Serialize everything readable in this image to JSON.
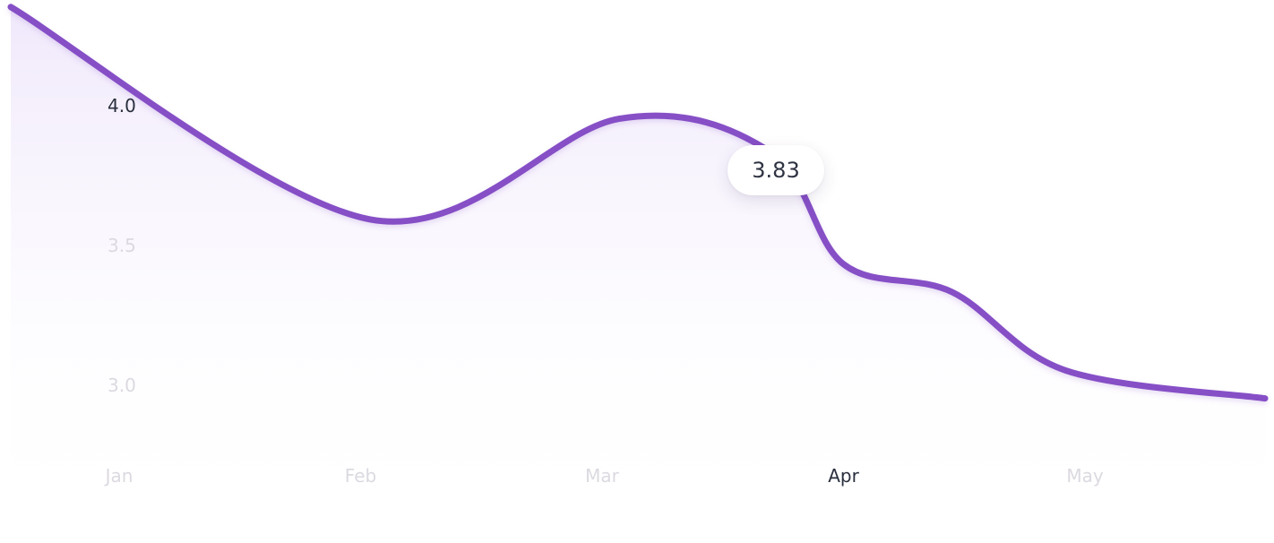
{
  "chart_data": {
    "type": "area",
    "categories": [
      "Jan",
      "Feb",
      "Mar",
      "Apr",
      "May"
    ],
    "highlighted_category": "Apr",
    "x": [
      0.0,
      1.04,
      2.07,
      2.7,
      3.0,
      3.45,
      3.92,
      4.84
    ],
    "y": [
      4.35,
      3.59,
      3.95,
      3.83,
      3.43,
      3.33,
      3.05,
      2.95
    ],
    "y_ticks": [
      "4.0",
      "3.5",
      "3.0"
    ],
    "y_tick_values": [
      4.0,
      3.5,
      3.0
    ],
    "highlighted_y_tick": "4.0",
    "ylim": [
      2.7,
      4.36
    ],
    "grid": false,
    "legend": "none",
    "tooltip": {
      "value": "3.83"
    },
    "colors": {
      "line": "#8650c6",
      "fill_top": "#efe7fb",
      "fill_bottom": "#ffffff",
      "tick_muted": "#dcd9e0",
      "tick_active": "#2a2f3d"
    }
  }
}
